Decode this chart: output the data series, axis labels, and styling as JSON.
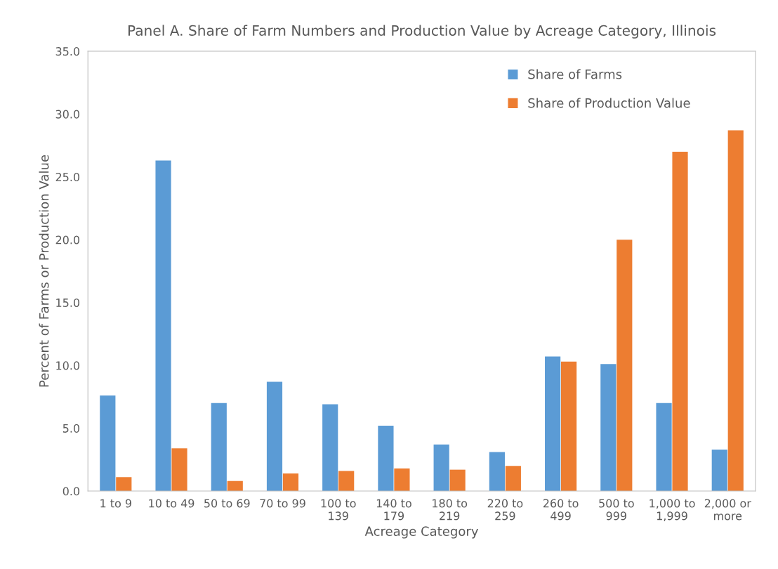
{
  "chart_data": {
    "type": "bar",
    "title": "Panel A. Share of Farm Numbers and Production Value by Acreage Category, Illinois",
    "xlabel": "Acreage Category",
    "ylabel": "Percent of Farms or Production Value",
    "categories": [
      "1 to 9",
      "10 to 49",
      "50 to 69",
      "70 to 99",
      "100 to 139",
      "140 to 179",
      "180 to 219",
      "220 to 259",
      "260 to 499",
      "500 to 999",
      "1,000 to 1,999",
      "2,000 or more"
    ],
    "series": [
      {
        "name": "Share of Farms",
        "color": "#5b9bd5",
        "values": [
          7.6,
          26.3,
          7.0,
          8.7,
          6.9,
          5.2,
          3.7,
          3.1,
          10.7,
          10.1,
          7.0,
          3.3
        ]
      },
      {
        "name": "Share of Production Value",
        "color": "#ed7d31",
        "values": [
          1.1,
          3.4,
          0.8,
          1.4,
          1.6,
          1.8,
          1.7,
          2.0,
          10.3,
          20.0,
          27.0,
          28.7
        ]
      }
    ],
    "ylim": [
      0,
      35
    ],
    "yticks": [
      {
        "value": 0,
        "label": "0.0"
      },
      {
        "value": 5,
        "label": "5.0"
      },
      {
        "value": 10,
        "label": "10.0"
      },
      {
        "value": 15,
        "label": "15.0"
      },
      {
        "value": 20,
        "label": "20.0"
      },
      {
        "value": 25,
        "label": "25.0"
      },
      {
        "value": 30,
        "label": "30.0"
      },
      {
        "value": 35,
        "label": "35.0"
      }
    ],
    "grid": false,
    "legend": "top right"
  }
}
